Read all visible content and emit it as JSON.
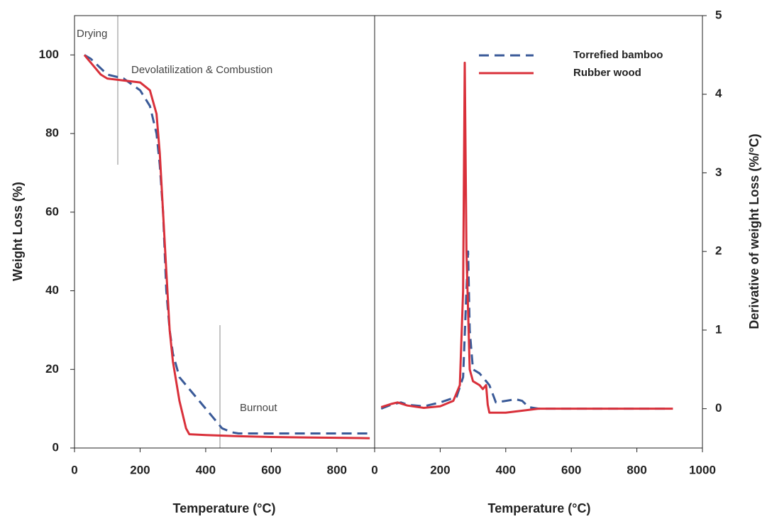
{
  "chart_data": [
    {
      "type": "line",
      "x_label": "Temperature (°C)",
      "y_label": "Weight Loss (%)",
      "annotations": [
        "Drying",
        "Devolatilization & Combustion",
        "Burnout"
      ],
      "xlim": [
        0,
        915
      ],
      "xticks": [
        0,
        200,
        400,
        600,
        800
      ],
      "ylim": [
        0,
        110
      ],
      "yticks": [
        0,
        20,
        40,
        60,
        80,
        100
      ],
      "series": [
        {
          "color": "#3a5a98",
          "dash": true,
          "x": [
            30,
            50,
            100,
            150,
            200,
            230,
            250,
            260,
            270,
            280,
            290,
            300,
            320,
            350,
            380,
            420,
            450,
            480,
            500,
            600,
            700,
            800,
            900
          ],
          "values": [
            100,
            99,
            95,
            94,
            91,
            87,
            80,
            72,
            60,
            40,
            30,
            24,
            18,
            15,
            12,
            8,
            5,
            4,
            3.7,
            3.7,
            3.7,
            3.7,
            3.7
          ]
        },
        {
          "color": "#d9303a",
          "dash": false,
          "x": [
            30,
            50,
            80,
            100,
            150,
            200,
            230,
            250,
            260,
            270,
            280,
            290,
            300,
            320,
            340,
            350,
            400,
            500,
            600,
            700,
            800,
            900
          ],
          "values": [
            100,
            98,
            95,
            94,
            93.5,
            93,
            91,
            85,
            75,
            60,
            45,
            30,
            22,
            12,
            5,
            3.5,
            3.3,
            3,
            2.8,
            2.7,
            2.6,
            2.5
          ]
        }
      ]
    },
    {
      "type": "line",
      "x_label": "Temperature (°C)",
      "y_label": "Derivative of weight Loss (%/°C)",
      "xlim": [
        0,
        1000
      ],
      "xticks": [
        0,
        200,
        400,
        600,
        800,
        1000
      ],
      "ylim": [
        -0.5,
        5
      ],
      "yticks": [
        0,
        1,
        2,
        3,
        4,
        5
      ],
      "series": [
        {
          "name": "Torrefied bamboo",
          "color": "#3a5a98",
          "dash": true,
          "x": [
            20,
            50,
            80,
            100,
            150,
            200,
            250,
            270,
            280,
            285,
            290,
            300,
            320,
            340,
            350,
            370,
            400,
            430,
            450,
            470,
            500,
            600,
            700,
            800,
            900
          ],
          "values": [
            0,
            0.05,
            0.08,
            0.05,
            0.03,
            0.08,
            0.15,
            0.4,
            1.5,
            2.0,
            1.0,
            0.5,
            0.45,
            0.35,
            0.3,
            0.08,
            0.1,
            0.12,
            0.1,
            0.02,
            0,
            0,
            0,
            0,
            0
          ]
        },
        {
          "name": "Rubber wood",
          "color": "#d9303a",
          "dash": false,
          "x": [
            20,
            50,
            70,
            100,
            150,
            200,
            240,
            260,
            270,
            275,
            280,
            290,
            300,
            320,
            330,
            340,
            345,
            350,
            400,
            500,
            600,
            700,
            800,
            910
          ],
          "values": [
            0.02,
            0.06,
            0.08,
            0.04,
            0.01,
            0.03,
            0.1,
            0.3,
            1.5,
            4.4,
            2.0,
            0.5,
            0.35,
            0.3,
            0.25,
            0.3,
            0.05,
            -0.05,
            -0.05,
            0,
            0,
            0,
            0,
            0
          ]
        }
      ]
    }
  ]
}
